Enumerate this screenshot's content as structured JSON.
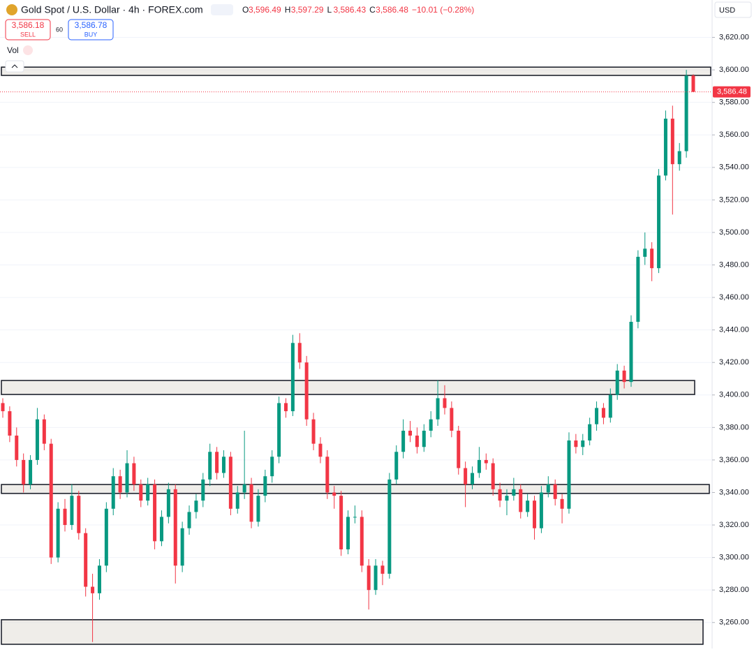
{
  "header": {
    "title": "Gold Spot / U.S. Dollar · 4h · FOREX.com",
    "ohlc": [
      {
        "key": "O",
        "value": "3,596.49"
      },
      {
        "key": "H",
        "value": "3,597.29"
      },
      {
        "key": "L",
        "value": "3,586.43"
      },
      {
        "key": "C",
        "value": "3,586.48"
      }
    ],
    "change": "−10.01 (−0.28%)",
    "sell_price": "3,586.18",
    "sell_label": "SELL",
    "spread": "60",
    "buy_price": "3,586.78",
    "buy_label": "BUY",
    "volume_label": "Vol",
    "currency": "USD"
  },
  "chart_data": {
    "type": "candlestick",
    "up_color": "#089981",
    "down_color": "#f23645",
    "ylim": [
      3244,
      3643
    ],
    "yticks": [
      {
        "value": 3260,
        "label": "3,260.00"
      },
      {
        "value": 3280,
        "label": "3,280.00"
      },
      {
        "value": 3300,
        "label": "3,300.00"
      },
      {
        "value": 3320,
        "label": "3,320.00"
      },
      {
        "value": 3340,
        "label": "3,340.00"
      },
      {
        "value": 3360,
        "label": "3,360.00"
      },
      {
        "value": 3380,
        "label": "3,380.00"
      },
      {
        "value": 3400,
        "label": "3,400.00"
      },
      {
        "value": 3420,
        "label": "3,420.00"
      },
      {
        "value": 3440,
        "label": "3,440.00"
      },
      {
        "value": 3460,
        "label": "3,460.00"
      },
      {
        "value": 3480,
        "label": "3,480.00"
      },
      {
        "value": 3500,
        "label": "3,500.00"
      },
      {
        "value": 3520,
        "label": "3,520.00"
      },
      {
        "value": 3540,
        "label": "3,540.00"
      },
      {
        "value": 3560,
        "label": "3,560.00"
      },
      {
        "value": 3580,
        "label": "3,580.00"
      },
      {
        "value": 3600,
        "label": "3,600.00"
      },
      {
        "value": 3620,
        "label": "3,620.00"
      }
    ],
    "grid": true,
    "last_price": {
      "value": 3586.48,
      "label": "3,586.48"
    },
    "zones": [
      {
        "low": 3596.6,
        "high": 3601.7
      },
      {
        "low": 3400.3,
        "high": 3408.9
      },
      {
        "low": 3339.4,
        "high": 3344.9
      },
      {
        "low": 3246.6,
        "high": 3261.7
      }
    ],
    "open": [
      3395,
      3390,
      3375,
      3360,
      3345,
      3360,
      3385,
      3370,
      3300,
      3330,
      3320,
      3338,
      3315,
      3282,
      3278,
      3295,
      3330,
      3350,
      3340,
      3358,
      3345,
      3335,
      3345,
      3310,
      3325,
      3342,
      3295,
      3318,
      3328,
      3335,
      3348,
      3365,
      3352,
      3362,
      3330,
      3340,
      3345,
      3322,
      3338,
      3350,
      3362,
      3395,
      3390,
      3432,
      3420,
      3385,
      3370,
      3362,
      3340,
      3338,
      3305,
      3325,
      3325,
      3295,
      3280,
      3295,
      3290,
      3348,
      3365,
      3378,
      3375,
      3368,
      3378,
      3385,
      3398,
      3392,
      3378,
      3355,
      3345,
      3352,
      3360,
      3358,
      3342,
      3335,
      3338,
      3342,
      3328,
      3335,
      3318,
      3340,
      3345,
      3336,
      3330,
      3372,
      3368,
      3372,
      3382,
      3392,
      3386,
      3400,
      3415,
      3408,
      3445,
      3485,
      3490,
      3478,
      3535,
      3570,
      3542,
      3550,
      3596.49
    ],
    "high": [
      3398,
      3393,
      3380,
      3364,
      3363,
      3392,
      3388,
      3373,
      3334,
      3336,
      3345,
      3341,
      3318,
      3290,
      3299,
      3334,
      3355,
      3354,
      3366,
      3362,
      3348,
      3349,
      3348,
      3329,
      3346,
      3345,
      3322,
      3332,
      3339,
      3352,
      3370,
      3368,
      3366,
      3365,
      3344,
      3378,
      3349,
      3342,
      3354,
      3366,
      3399,
      3398,
      3437,
      3438,
      3424,
      3389,
      3374,
      3366,
      3344,
      3341,
      3329,
      3332,
      3329,
      3299,
      3299,
      3298,
      3352,
      3369,
      3385,
      3384,
      3380,
      3382,
      3390,
      3409,
      3406,
      3396,
      3381,
      3359,
      3356,
      3368,
      3364,
      3361,
      3346,
      3342,
      3349,
      3345,
      3339,
      3338,
      3344,
      3350,
      3348,
      3339,
      3377,
      3376,
      3376,
      3386,
      3396,
      3395,
      3404,
      3419,
      3418,
      3449,
      3489,
      3500,
      3494,
      3539,
      3575,
      3578,
      3555,
      3600,
      3597.29
    ],
    "low": [
      3386,
      3371,
      3356,
      3340,
      3342,
      3357,
      3366,
      3296,
      3297,
      3316,
      3317,
      3311,
      3276,
      3248,
      3274,
      3291,
      3326,
      3336,
      3337,
      3341,
      3331,
      3332,
      3305,
      3307,
      3321,
      3284,
      3291,
      3314,
      3324,
      3331,
      3344,
      3348,
      3349,
      3326,
      3327,
      3336,
      3318,
      3319,
      3334,
      3346,
      3358,
      3386,
      3387,
      3416,
      3381,
      3366,
      3358,
      3336,
      3330,
      3301,
      3302,
      3321,
      3291,
      3268,
      3277,
      3283,
      3287,
      3345,
      3361,
      3371,
      3364,
      3365,
      3374,
      3381,
      3388,
      3374,
      3351,
      3331,
      3342,
      3349,
      3354,
      3338,
      3331,
      3326,
      3335,
      3324,
      3325,
      3311,
      3315,
      3337,
      3332,
      3321,
      3327,
      3364,
      3363,
      3369,
      3378,
      3382,
      3383,
      3397,
      3404,
      3405,
      3441,
      3480,
      3470,
      3475,
      3532,
      3511,
      3538,
      3546,
      3586.43
    ],
    "close": [
      3390,
      3375,
      3360,
      3345,
      3360,
      3385,
      3370,
      3300,
      3330,
      3320,
      3338,
      3315,
      3282,
      3278,
      3295,
      3330,
      3350,
      3340,
      3358,
      3345,
      3335,
      3345,
      3310,
      3325,
      3342,
      3295,
      3318,
      3328,
      3335,
      3348,
      3365,
      3352,
      3362,
      3330,
      3340,
      3345,
      3322,
      3338,
      3350,
      3362,
      3395,
      3390,
      3432,
      3420,
      3385,
      3370,
      3362,
      3340,
      3338,
      3305,
      3325,
      3325,
      3295,
      3280,
      3295,
      3290,
      3348,
      3365,
      3378,
      3375,
      3368,
      3378,
      3385,
      3398,
      3392,
      3378,
      3355,
      3345,
      3352,
      3360,
      3358,
      3342,
      3335,
      3338,
      3342,
      3328,
      3335,
      3318,
      3340,
      3345,
      3336,
      3330,
      3372,
      3368,
      3372,
      3382,
      3392,
      3386,
      3400,
      3415,
      3408,
      3445,
      3485,
      3490,
      3478,
      3535,
      3570,
      3542,
      3550,
      3596.49,
      3586.48
    ]
  }
}
